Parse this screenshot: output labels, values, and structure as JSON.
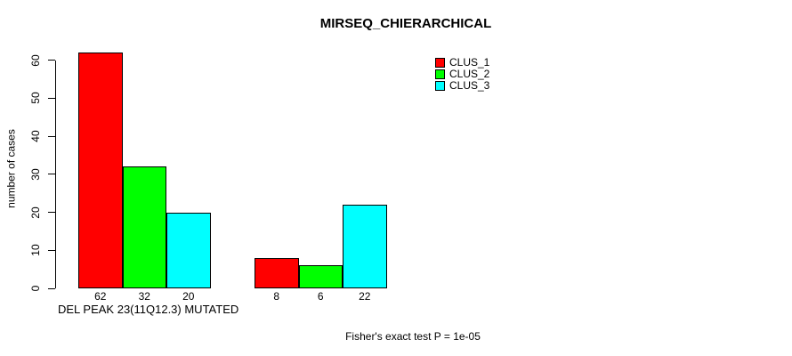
{
  "chart_data": {
    "type": "bar",
    "title": "MIRSEQ_CHIERARCHICAL",
    "ylabel": "number of cases",
    "xlabel": "DEL PEAK 23(11Q12.3) MUTATED",
    "annotation": "Fisher's exact test P = 1e-05",
    "categories": [
      "DEL PEAK 23(11Q12.3) MUTATED",
      ""
    ],
    "series": [
      {
        "name": "CLUS_1",
        "color": "#ff0000",
        "values": [
          62,
          8
        ]
      },
      {
        "name": "CLUS_2",
        "color": "#00ff00",
        "values": [
          32,
          6
        ]
      },
      {
        "name": "CLUS_3",
        "color": "#00ffff",
        "values": [
          20,
          22
        ]
      }
    ],
    "value_labels": [
      [
        "62",
        "32",
        "20"
      ],
      [
        "8",
        "6",
        "22"
      ]
    ],
    "y_ticks": [
      0,
      10,
      20,
      30,
      40,
      50,
      60
    ],
    "ylim": [
      0,
      62
    ],
    "grid": false,
    "legend": {
      "position": "top-right",
      "entries": [
        {
          "label": "CLUS_1",
          "color": "#ff0000"
        },
        {
          "label": "CLUS_2",
          "color": "#00ff00"
        },
        {
          "label": "CLUS_3",
          "color": "#00ffff"
        }
      ]
    }
  }
}
